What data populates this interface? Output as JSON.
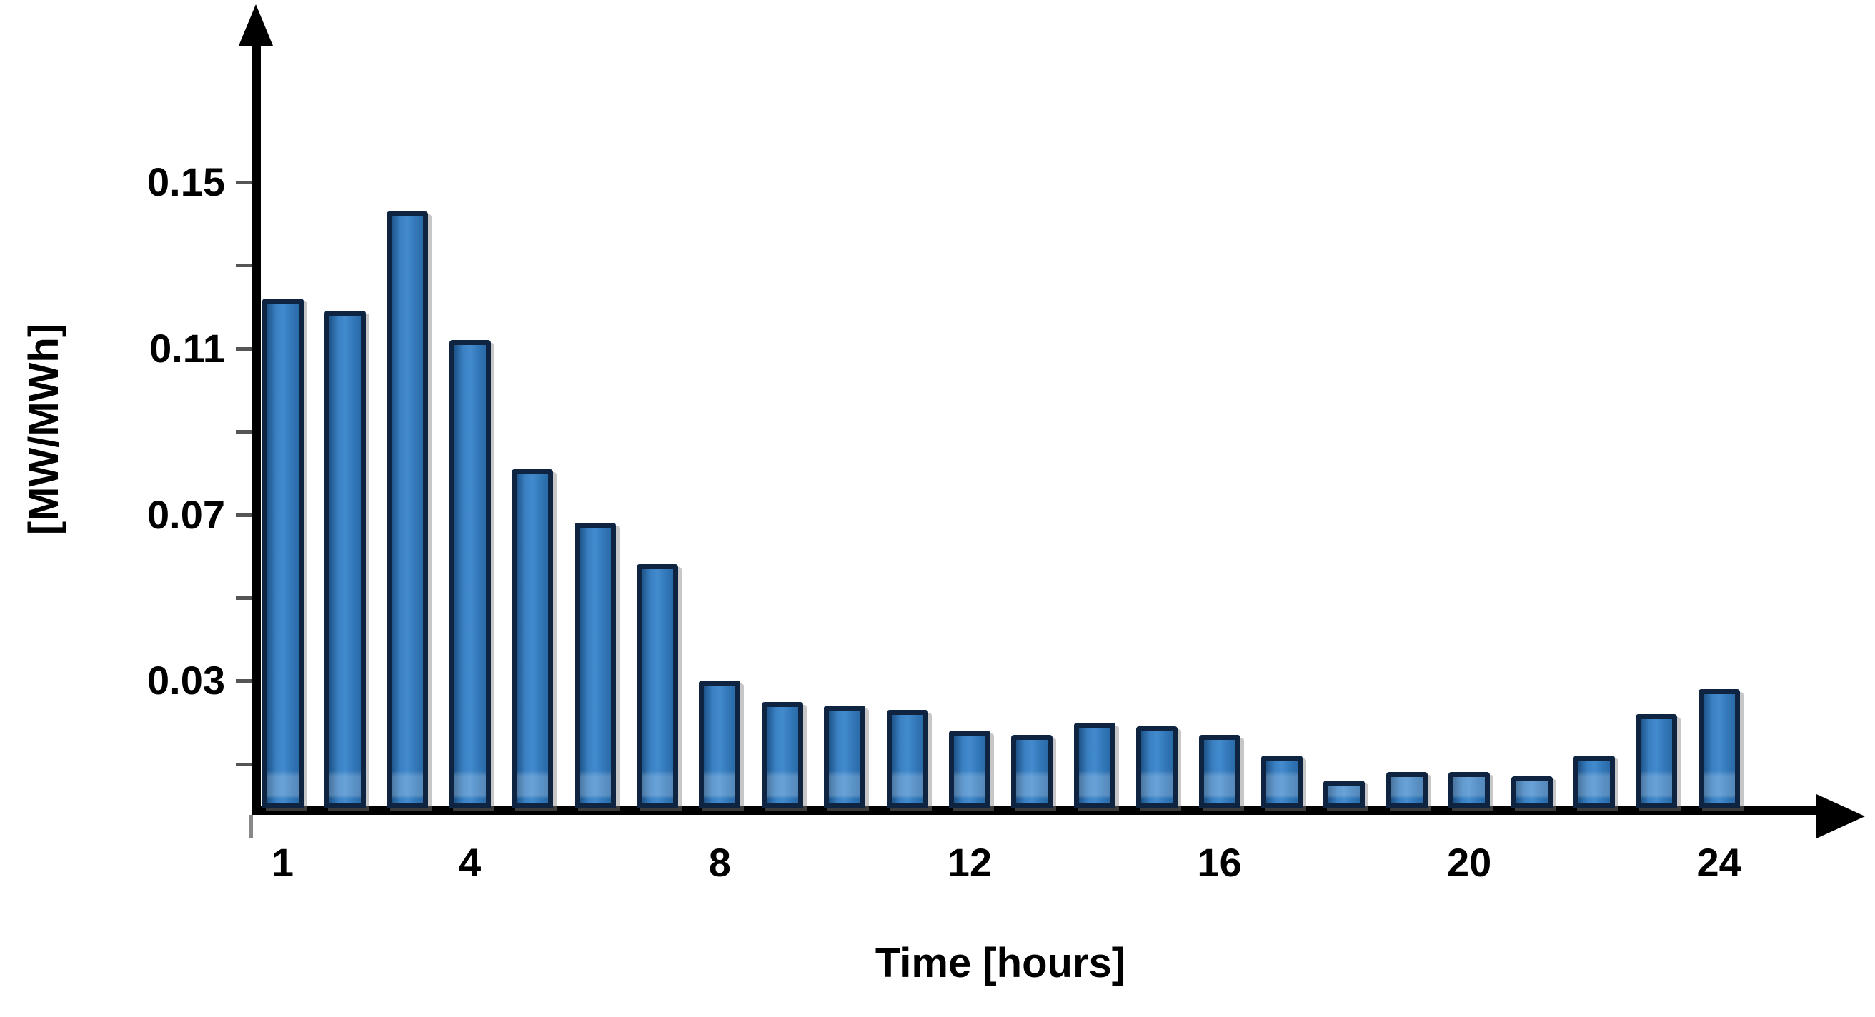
{
  "figure": {
    "x_axis_title": "Time [hours]",
    "y_axis_title": "[MW/MWh]"
  },
  "chart_data": {
    "type": "bar",
    "title": "",
    "xlabel": "Time [hours]",
    "ylabel": "[MW/MWh]",
    "x": [
      1,
      2,
      3,
      4,
      5,
      6,
      7,
      8,
      9,
      10,
      11,
      12,
      13,
      14,
      15,
      16,
      17,
      18,
      19,
      20,
      21,
      22,
      23,
      24
    ],
    "values": [
      0.122,
      0.119,
      0.143,
      0.112,
      0.081,
      0.068,
      0.058,
      0.03,
      0.025,
      0.024,
      0.023,
      0.018,
      0.017,
      0.02,
      0.019,
      0.017,
      0.012,
      0.006,
      0.008,
      0.008,
      0.007,
      0.012,
      0.022,
      0.028
    ],
    "ylim": [
      0,
      0.19
    ],
    "y_major_ticks": [
      {
        "value": 0.03,
        "label": "0.03"
      },
      {
        "value": 0.07,
        "label": "0.07"
      },
      {
        "value": 0.11,
        "label": "0.11"
      },
      {
        "value": 0.15,
        "label": "0.15"
      }
    ],
    "y_minor_tick_values": [
      0.01,
      0.03,
      0.05,
      0.07,
      0.09,
      0.11,
      0.13,
      0.15
    ],
    "x_ticks": [
      {
        "hour": 1,
        "label": "1"
      },
      {
        "hour": 4,
        "label": "4"
      },
      {
        "hour": 8,
        "label": "8"
      },
      {
        "hour": 12,
        "label": "12"
      },
      {
        "hour": 16,
        "label": "16"
      },
      {
        "hour": 20,
        "label": "20"
      },
      {
        "hour": 24,
        "label": "24"
      }
    ],
    "grid": false,
    "legend": null
  },
  "style": {
    "background": "#ffffff",
    "axis_color": "#000000",
    "tick_color": "#555555",
    "text_color": "#000000",
    "bar_fill": "#3277b8",
    "bar_fill_light": "#428bce",
    "bar_fill_dark": "#1d5388",
    "bar_border": "#0e2440",
    "bar_shadow": "#828287"
  }
}
